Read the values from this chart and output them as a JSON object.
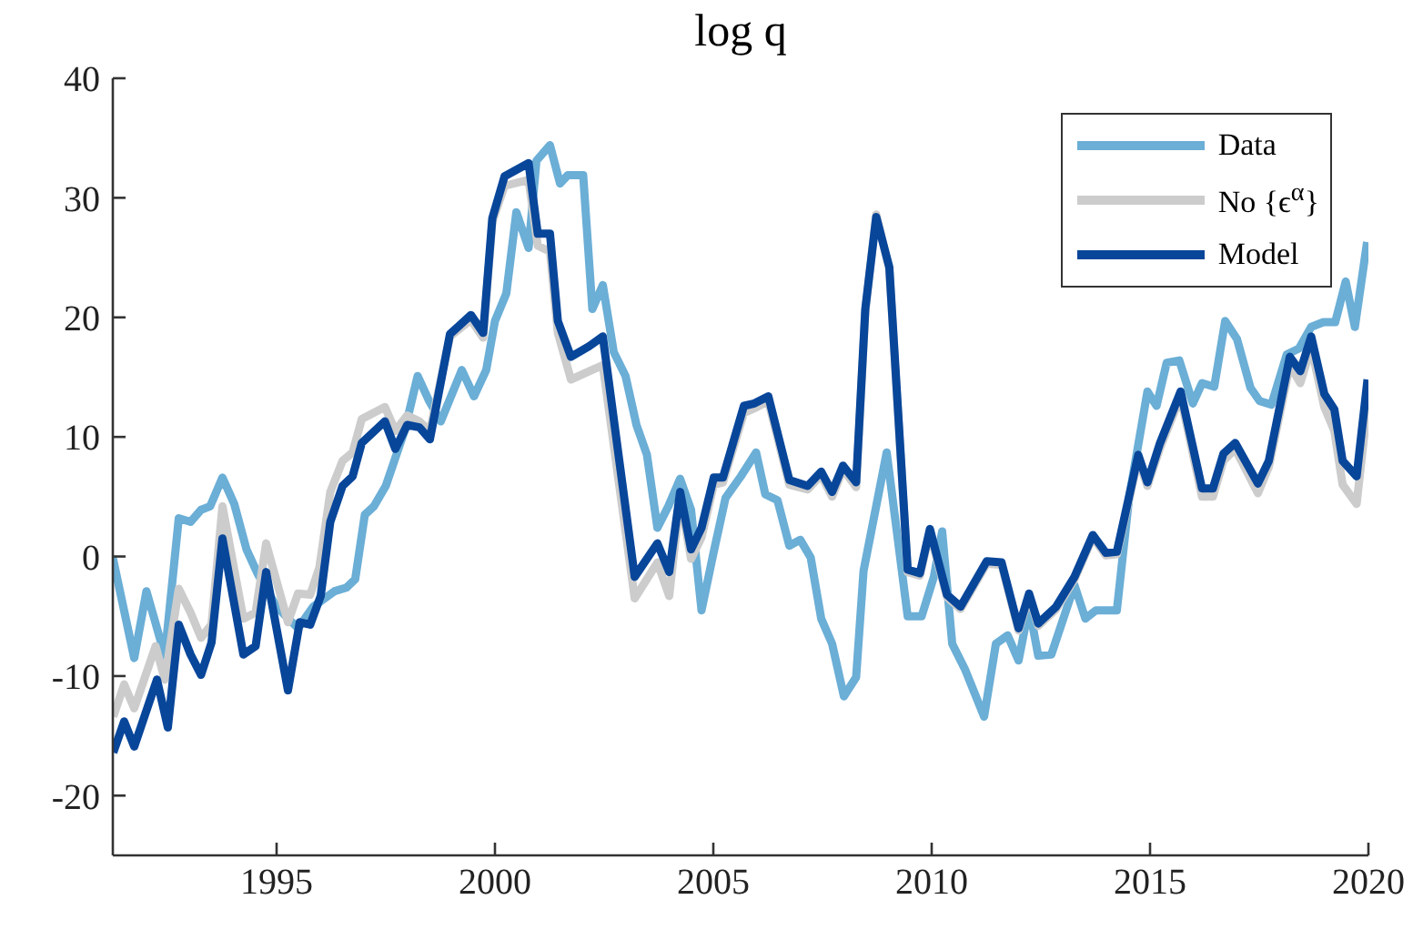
{
  "chart_data": {
    "type": "line",
    "title": "log q",
    "xlim": [
      1991.25,
      2020
    ],
    "xticks": [
      1995,
      2000,
      2005,
      2010,
      2015,
      2020
    ],
    "ylim": [
      -25,
      40
    ],
    "yticks": [
      -20,
      -10,
      0,
      10,
      20,
      30,
      40
    ],
    "legend": "top right",
    "marker": "none",
    "line_style": "solid",
    "series": [
      {
        "name": "Data",
        "color": "#6baed6",
        "x": [
          1991.25,
          1991.74,
          1992.02,
          1992.44,
          1992.76,
          1993.03,
          1993.27,
          1993.48,
          1993.76,
          1994.03,
          1994.31,
          1994.56,
          1995.0,
          1995.49,
          1995.84,
          1996.33,
          1996.6,
          1996.8,
          1997.02,
          1997.23,
          1997.5,
          1997.93,
          1998.23,
          1998.48,
          1998.76,
          1999.24,
          1999.52,
          1999.8,
          2000.0,
          2000.26,
          2000.49,
          2000.77,
          2000.95,
          2001.26,
          2001.49,
          2001.67,
          2002.02,
          2002.23,
          2002.47,
          2002.72,
          2002.99,
          2003.24,
          2003.48,
          2003.72,
          2003.97,
          2004.24,
          2004.49,
          2004.73,
          2005.01,
          2005.28,
          2005.63,
          2005.98,
          2006.19,
          2006.47,
          2006.74,
          2006.99,
          2007.23,
          2007.47,
          2007.72,
          2007.99,
          2008.27,
          2008.44,
          2008.97,
          2009.45,
          2009.77,
          2010.05,
          2010.24,
          2010.47,
          2010.77,
          2011.2,
          2011.47,
          2011.74,
          2011.99,
          2012.23,
          2012.44,
          2012.74,
          2013.27,
          2013.52,
          2013.76,
          2014.24,
          2014.52,
          2014.94,
          2015.15,
          2015.38,
          2015.67,
          2015.98,
          2016.19,
          2016.47,
          2016.72,
          2016.99,
          2017.3,
          2017.51,
          2017.78,
          2018.13,
          2018.41,
          2018.69,
          2018.97,
          2019.24,
          2019.48,
          2019.69,
          2019.97
        ],
        "values": [
          -0.1,
          -8.5,
          -2.9,
          -8.3,
          3.2,
          2.9,
          3.9,
          4.2,
          6.6,
          4.4,
          0.6,
          -1.4,
          -4.2,
          -6.0,
          -4.2,
          -2.9,
          -2.6,
          -1.9,
          3.5,
          4.2,
          5.9,
          10.5,
          15.1,
          13.1,
          11.3,
          15.6,
          13.4,
          15.6,
          19.7,
          22.0,
          28.8,
          25.8,
          33.1,
          34.4,
          31.2,
          31.9,
          31.9,
          20.7,
          22.7,
          17.1,
          15.1,
          11.0,
          8.5,
          2.4,
          4.2,
          6.5,
          3.9,
          -4.5,
          0.4,
          4.9,
          6.7,
          8.7,
          5.2,
          4.7,
          0.9,
          1.4,
          -0.1,
          -5.2,
          -7.3,
          -11.7,
          -10.1,
          -1.2,
          8.7,
          -5.0,
          -5.0,
          -1.7,
          2.1,
          -7.3,
          -9.5,
          -13.4,
          -7.3,
          -6.6,
          -8.7,
          -4.2,
          -8.3,
          -8.2,
          -2.4,
          -5.2,
          -4.5,
          -4.5,
          4.9,
          13.8,
          12.6,
          16.2,
          16.4,
          12.8,
          14.5,
          14.2,
          19.7,
          18.2,
          14.1,
          13.0,
          12.7,
          16.9,
          17.4,
          19.2,
          19.6,
          19.6,
          23.0,
          19.2,
          26.3
        ]
      },
      {
        "name": "No {ϵ$^{α}$}",
        "color": "#cccccc",
        "x": [
          1991.26,
          1991.51,
          1991.74,
          1992.23,
          1992.44,
          1992.76,
          1993.03,
          1993.27,
          1993.51,
          1993.76,
          1994.24,
          1994.52,
          1994.76,
          1995.26,
          1995.49,
          1995.77,
          1995.98,
          1996.23,
          1996.51,
          1996.74,
          1996.95,
          1997.48,
          1997.72,
          1997.99,
          1998.27,
          1998.51,
          1998.97,
          1999.45,
          1999.73,
          1999.94,
          2000.22,
          2000.77,
          2000.98,
          2001.26,
          2001.44,
          2001.74,
          2002.16,
          2002.47,
          2003.2,
          2003.72,
          2003.99,
          2004.24,
          2004.49,
          2004.73,
          2005.01,
          2005.22,
          2005.7,
          2005.94,
          2006.26,
          2006.74,
          2007.16,
          2007.47,
          2007.72,
          2007.97,
          2008.27,
          2008.48,
          2008.73,
          2009.03,
          2009.45,
          2009.73,
          2009.96,
          2010.35,
          2010.66,
          2011.26,
          2011.6,
          2011.99,
          2012.23,
          2012.44,
          2012.85,
          2013.27,
          2013.69,
          2013.99,
          2014.24,
          2014.73,
          2014.94,
          2015.22,
          2015.7,
          2016.19,
          2016.44,
          2016.68,
          2016.95,
          2017.47,
          2017.72,
          2018.2,
          2018.44,
          2018.69,
          2018.99,
          2019.22,
          2019.41,
          2019.73,
          2019.98
        ],
        "values": [
          -13.4,
          -10.7,
          -12.7,
          -7.5,
          -10.3,
          -2.7,
          -4.7,
          -6.8,
          -5.7,
          4.2,
          -5.2,
          -4.7,
          1.1,
          -5.5,
          -3.1,
          -3.2,
          -0.9,
          5.4,
          8.0,
          8.7,
          11.5,
          12.5,
          10.5,
          11.8,
          11.3,
          10.5,
          18.4,
          19.8,
          18.3,
          28.0,
          31.0,
          31.5,
          26.0,
          25.5,
          18.7,
          14.8,
          15.5,
          16.0,
          -3.5,
          -0.5,
          -3.3,
          5.0,
          -0.2,
          1.6,
          6.0,
          6.2,
          12.0,
          12.4,
          13.0,
          6.0,
          5.6,
          6.8,
          5.0,
          7.3,
          5.8,
          20.5,
          28.6,
          24.0,
          -1.3,
          -1.6,
          2.0,
          -3.4,
          -4.4,
          -0.6,
          -0.7,
          -6.2,
          -3.3,
          -5.8,
          -4.4,
          -1.9,
          1.6,
          0.1,
          0.2,
          8.2,
          5.9,
          9.0,
          13.4,
          5.0,
          5.0,
          8.0,
          9.0,
          5.3,
          7.5,
          16.0,
          14.5,
          17.5,
          12.5,
          10.5,
          6.0,
          4.4,
          12.6
        ]
      },
      {
        "name": "Model",
        "color": "#08469a",
        "x": [
          1991.26,
          1991.51,
          1991.74,
          1992.26,
          1992.51,
          1992.76,
          1993.03,
          1993.27,
          1993.51,
          1993.76,
          1994.24,
          1994.52,
          1994.76,
          1995.26,
          1995.53,
          1995.77,
          1996.01,
          1996.23,
          1996.51,
          1996.74,
          1996.95,
          1997.48,
          1997.72,
          1997.99,
          1998.27,
          1998.51,
          1998.97,
          1999.45,
          1999.73,
          1999.94,
          2000.22,
          2000.77,
          2000.98,
          2001.26,
          2001.44,
          2001.74,
          2002.16,
          2002.47,
          2003.2,
          2003.72,
          2003.99,
          2004.24,
          2004.49,
          2004.73,
          2005.01,
          2005.22,
          2005.7,
          2005.94,
          2006.26,
          2006.74,
          2007.16,
          2007.47,
          2007.72,
          2007.97,
          2008.27,
          2008.48,
          2008.73,
          2009.03,
          2009.45,
          2009.73,
          2009.96,
          2010.35,
          2010.66,
          2011.26,
          2011.6,
          2011.99,
          2012.23,
          2012.44,
          2012.85,
          2013.27,
          2013.69,
          2013.99,
          2014.24,
          2014.73,
          2014.94,
          2015.22,
          2015.7,
          2016.19,
          2016.44,
          2016.68,
          2016.95,
          2017.47,
          2017.72,
          2018.2,
          2018.44,
          2018.69,
          2018.99,
          2019.22,
          2019.41,
          2019.73,
          2019.98
        ],
        "values": [
          -16.4,
          -13.8,
          -15.9,
          -10.3,
          -14.3,
          -5.7,
          -8.2,
          -9.9,
          -7.2,
          1.5,
          -8.2,
          -7.5,
          -1.3,
          -11.2,
          -5.5,
          -5.7,
          -3.3,
          2.9,
          5.9,
          6.7,
          9.5,
          11.3,
          9.0,
          11.0,
          10.8,
          9.8,
          18.6,
          20.2,
          18.7,
          28.3,
          31.8,
          32.9,
          27.0,
          27.0,
          19.7,
          16.7,
          17.6,
          18.4,
          -1.7,
          1.1,
          -1.3,
          5.4,
          0.6,
          2.4,
          6.6,
          6.6,
          12.6,
          12.8,
          13.4,
          6.4,
          5.9,
          7.1,
          5.4,
          7.6,
          6.2,
          20.7,
          28.4,
          24.2,
          -1.1,
          -1.4,
          2.3,
          -3.2,
          -4.2,
          -0.4,
          -0.5,
          -6.0,
          -3.1,
          -5.6,
          -4.2,
          -1.7,
          1.8,
          0.3,
          0.4,
          8.5,
          6.2,
          9.4,
          13.8,
          5.7,
          5.7,
          8.6,
          9.5,
          6.1,
          8.0,
          16.7,
          15.5,
          18.4,
          13.6,
          12.3,
          8.0,
          6.7,
          14.8
        ]
      }
    ]
  }
}
